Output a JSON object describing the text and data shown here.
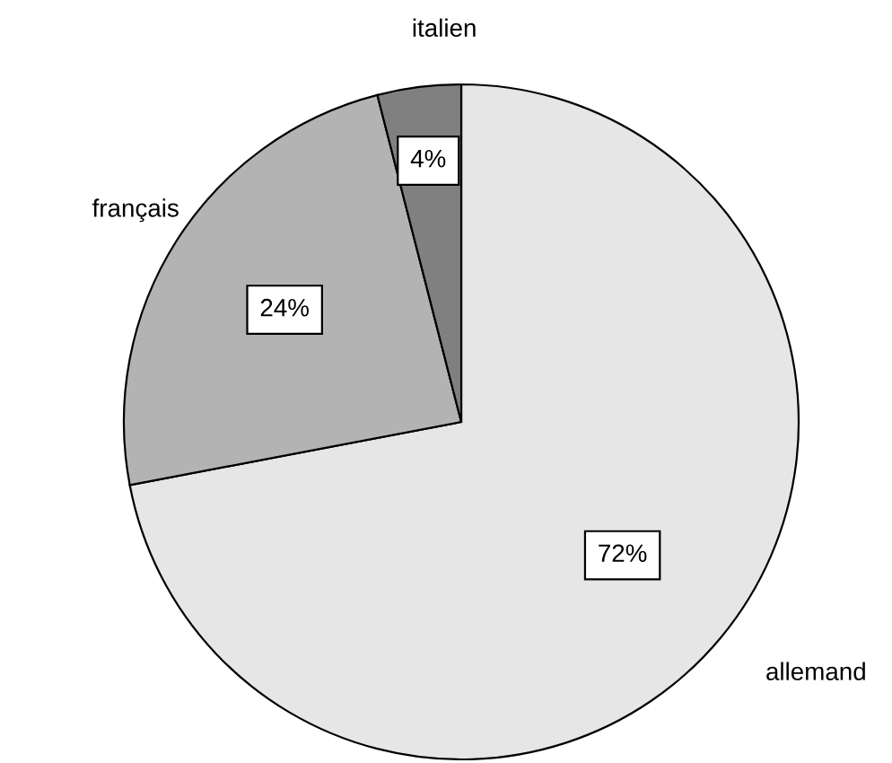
{
  "chart_data": {
    "type": "pie",
    "categories": [
      "allemand",
      "français",
      "italien"
    ],
    "values": [
      72,
      24,
      4
    ],
    "value_labels": [
      "72%",
      "24%",
      "4%"
    ],
    "colors": [
      "#e6e6e6",
      "#b3b3b3",
      "#808080"
    ],
    "legend": false
  }
}
